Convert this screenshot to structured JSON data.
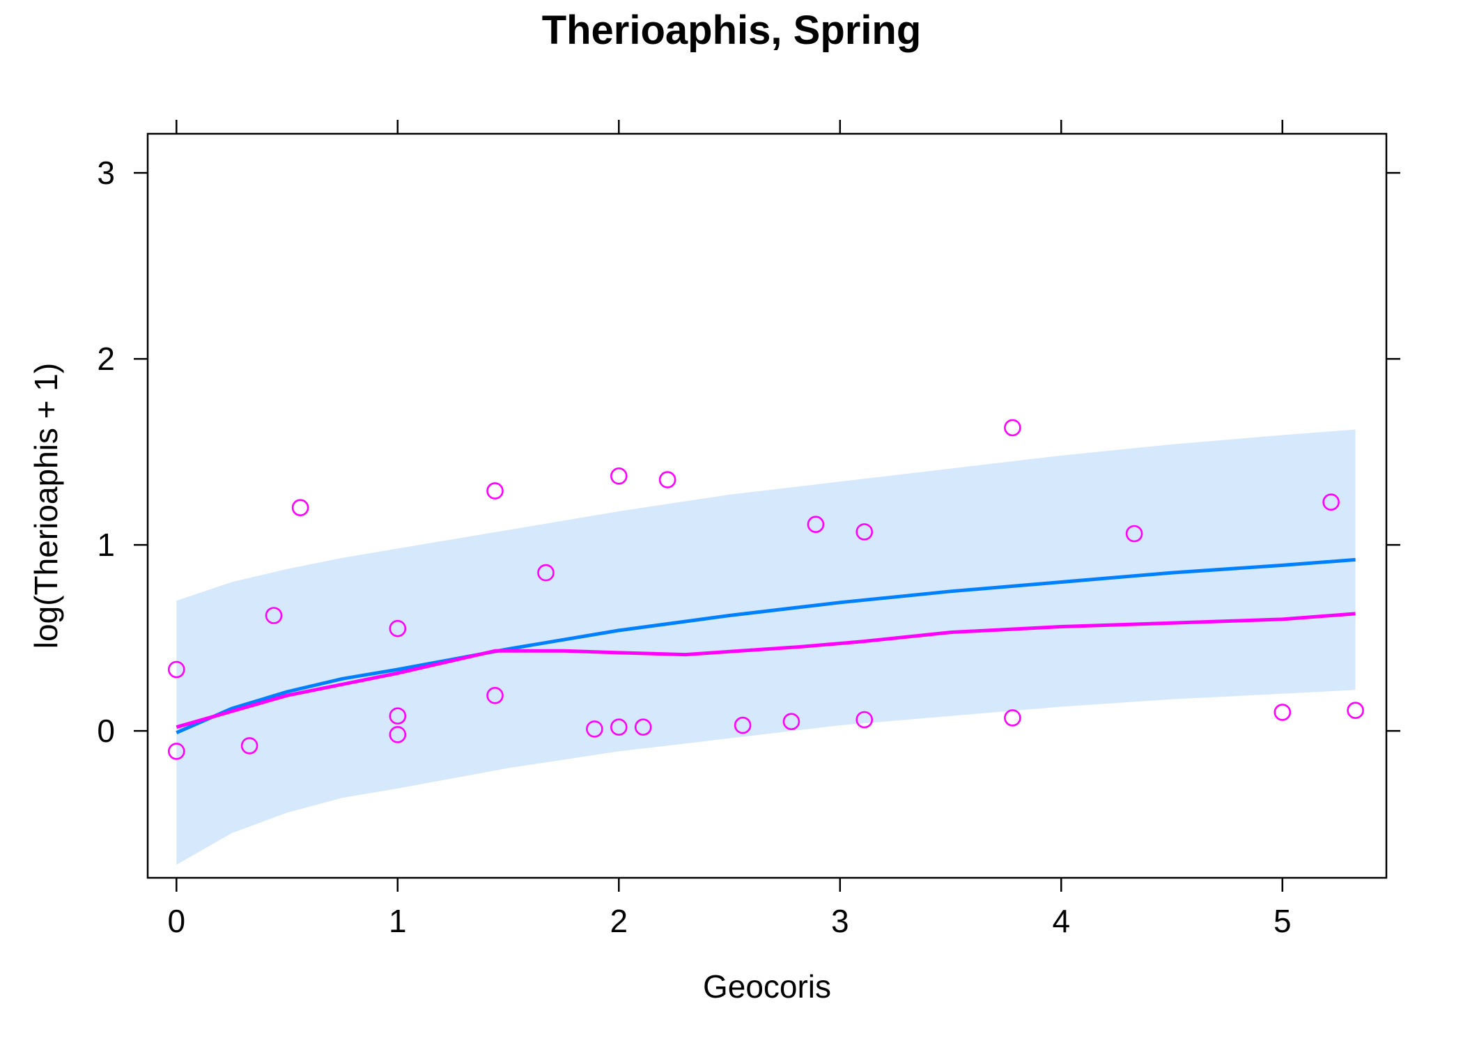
{
  "chart_data": {
    "type": "scatter",
    "title": "Therioaphis, Spring",
    "xlabel": "Geocoris",
    "ylabel": "log(Therioaphis + 1)",
    "xlim": [
      -0.13,
      5.47
    ],
    "ylim": [
      -0.79,
      3.21
    ],
    "x_ticks": [
      0,
      1,
      2,
      3,
      4,
      5
    ],
    "y_ticks": [
      0,
      1,
      2,
      3
    ],
    "grid": false,
    "legend": "none",
    "colors": {
      "points": "#ff00ff",
      "fit_line": "#0080ff",
      "smooth_line": "#ff00ff",
      "band": "#d6e8fb",
      "axis": "#000000"
    },
    "series": [
      {
        "type": "scatter",
        "points": [
          [
            0.0,
            0.33
          ],
          [
            0.0,
            -0.11
          ],
          [
            0.33,
            -0.08
          ],
          [
            0.44,
            0.62
          ],
          [
            0.56,
            1.2
          ],
          [
            1.0,
            0.55
          ],
          [
            1.0,
            0.08
          ],
          [
            1.0,
            -0.02
          ],
          [
            1.44,
            1.29
          ],
          [
            1.44,
            0.19
          ],
          [
            1.67,
            0.85
          ],
          [
            1.89,
            0.01
          ],
          [
            2.0,
            1.37
          ],
          [
            2.0,
            0.02
          ],
          [
            2.11,
            0.02
          ],
          [
            2.22,
            1.35
          ],
          [
            2.56,
            0.03
          ],
          [
            2.78,
            0.05
          ],
          [
            2.89,
            1.11
          ],
          [
            3.11,
            1.07
          ],
          [
            3.11,
            0.06
          ],
          [
            3.78,
            1.63
          ],
          [
            3.78,
            0.07
          ],
          [
            4.33,
            1.06
          ],
          [
            5.0,
            0.1
          ],
          [
            5.22,
            1.23
          ],
          [
            5.33,
            0.11
          ]
        ]
      },
      {
        "type": "line",
        "points": [
          [
            0.0,
            -0.01
          ],
          [
            0.25,
            0.12
          ],
          [
            0.5,
            0.21
          ],
          [
            0.75,
            0.28
          ],
          [
            1.0,
            0.33
          ],
          [
            1.5,
            0.44
          ],
          [
            2.0,
            0.54
          ],
          [
            2.5,
            0.62
          ],
          [
            3.0,
            0.69
          ],
          [
            3.5,
            0.75
          ],
          [
            4.0,
            0.8
          ],
          [
            4.5,
            0.85
          ],
          [
            5.0,
            0.89
          ],
          [
            5.33,
            0.92
          ]
        ]
      },
      {
        "type": "line",
        "points": [
          [
            0.0,
            0.02
          ],
          [
            0.5,
            0.19
          ],
          [
            1.0,
            0.31
          ],
          [
            1.44,
            0.43
          ],
          [
            1.75,
            0.43
          ],
          [
            2.0,
            0.42
          ],
          [
            2.3,
            0.41
          ],
          [
            2.8,
            0.45
          ],
          [
            3.1,
            0.48
          ],
          [
            3.5,
            0.53
          ],
          [
            4.0,
            0.56
          ],
          [
            4.5,
            0.58
          ],
          [
            5.0,
            0.6
          ],
          [
            5.33,
            0.63
          ]
        ]
      },
      {
        "type": "band",
        "upper": [
          [
            0.0,
            0.7
          ],
          [
            0.25,
            0.8
          ],
          [
            0.5,
            0.87
          ],
          [
            0.75,
            0.93
          ],
          [
            1.0,
            0.98
          ],
          [
            1.5,
            1.08
          ],
          [
            2.0,
            1.18
          ],
          [
            2.5,
            1.27
          ],
          [
            3.0,
            1.34
          ],
          [
            3.5,
            1.41
          ],
          [
            4.0,
            1.48
          ],
          [
            4.5,
            1.54
          ],
          [
            5.0,
            1.59
          ],
          [
            5.33,
            1.62
          ]
        ],
        "lower": [
          [
            0.0,
            -0.72
          ],
          [
            0.25,
            -0.55
          ],
          [
            0.5,
            -0.44
          ],
          [
            0.75,
            -0.36
          ],
          [
            1.0,
            -0.31
          ],
          [
            1.5,
            -0.2
          ],
          [
            2.0,
            -0.11
          ],
          [
            2.5,
            -0.04
          ],
          [
            3.0,
            0.03
          ],
          [
            3.5,
            0.08
          ],
          [
            4.0,
            0.13
          ],
          [
            4.5,
            0.17
          ],
          [
            5.0,
            0.2
          ],
          [
            5.33,
            0.22
          ]
        ]
      }
    ]
  }
}
